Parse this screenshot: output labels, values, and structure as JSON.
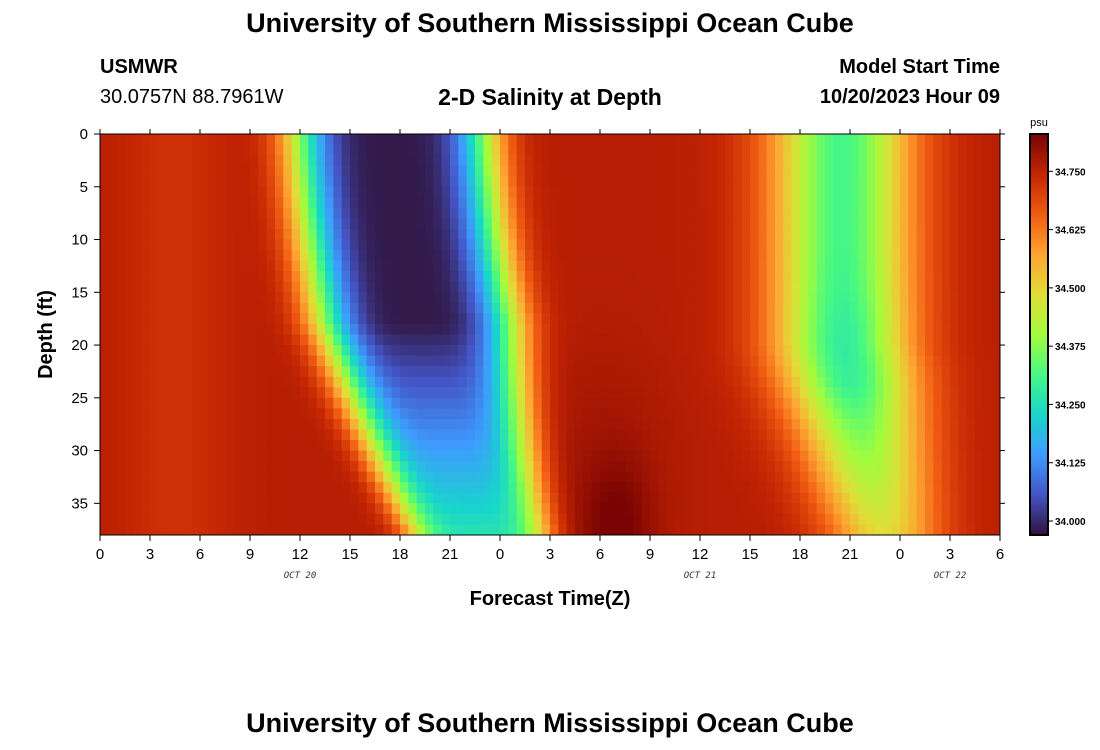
{
  "header": {
    "title": "University of Southern Mississippi Ocean Cube",
    "station": "USMWR",
    "coords": "30.0757N  88.7961W",
    "subtitle": "2-D Salinity at Depth",
    "model_start_label": "Model Start Time",
    "model_start_value": "10/20/2023 Hour 09"
  },
  "footer": {
    "title": "University of Southern Mississippi Ocean Cube"
  },
  "chart_data": {
    "type": "heatmap",
    "title": "2-D Salinity at Depth",
    "xlabel": "Forecast Time(Z)",
    "ylabel": "Depth (ft)",
    "x_range_hours": [
      0,
      54
    ],
    "y_range_ft": [
      0,
      38
    ],
    "x_ticks": [
      "0",
      "3",
      "6",
      "9",
      "12",
      "15",
      "18",
      "21",
      "0",
      "3",
      "6",
      "9",
      "12",
      "15",
      "18",
      "21",
      "0",
      "3",
      "6"
    ],
    "y_ticks": [
      "0",
      "5",
      "10",
      "15",
      "20",
      "25",
      "30",
      "35"
    ],
    "y_tick_values": [
      0,
      5,
      10,
      15,
      20,
      25,
      30,
      35
    ],
    "date_labels": [
      {
        "text": "OCT 20",
        "hour": 12
      },
      {
        "text": "OCT 21",
        "hour": 36
      },
      {
        "text": "OCT 22",
        "hour": 51
      }
    ],
    "colorbar": {
      "unit": "psu",
      "min": 33.97,
      "max": 34.83,
      "ticks": [
        "34.750",
        "34.625",
        "34.500",
        "34.375",
        "34.250",
        "34.125",
        "34.000"
      ],
      "tick_values": [
        34.75,
        34.625,
        34.5,
        34.375,
        34.25,
        34.125,
        34.0
      ],
      "colors": [
        "#30123b",
        "#4454c4",
        "#3e9bfe",
        "#18d6cb",
        "#46f884",
        "#a2fc3c",
        "#e1dd37",
        "#fea331",
        "#f05b12",
        "#c42503",
        "#7a0403"
      ]
    },
    "salinity_features": {
      "background_psu": 34.76,
      "first_minimum_psu": 34.0,
      "first_minimum_hours": [
        15,
        21
      ],
      "second_minimum_psu": 34.3,
      "second_minimum_hours": [
        41,
        48
      ],
      "maximum_psu": 34.82,
      "maximum_hour": 31,
      "maximum_depth_ft": 38
    }
  }
}
